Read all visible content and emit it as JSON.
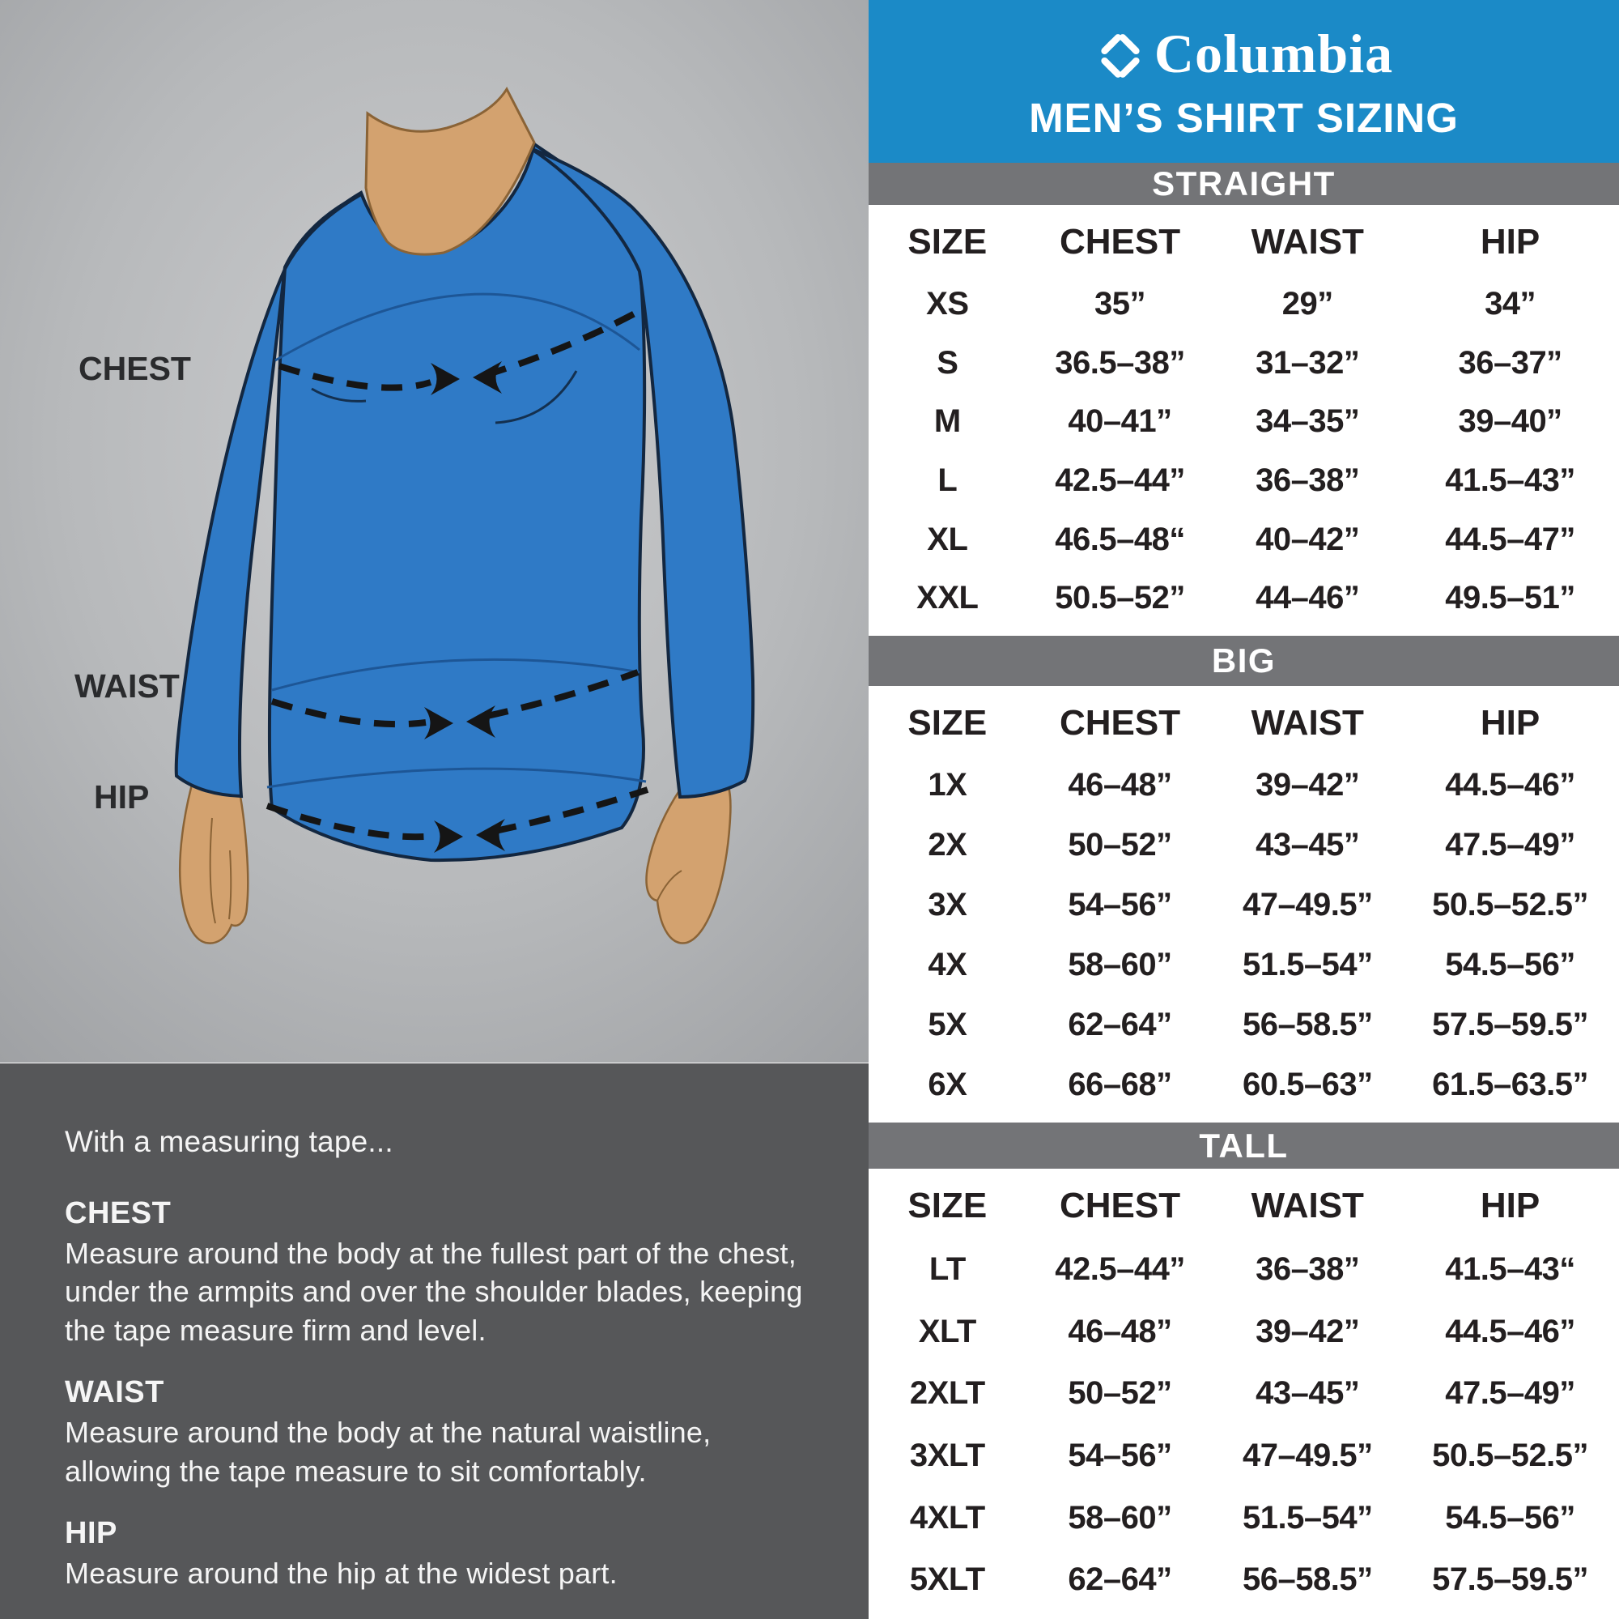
{
  "brand": {
    "icon": "columbia-diamond-logo",
    "name": "Columbia",
    "title": "MEN’S SHIRT SIZING"
  },
  "colors": {
    "header_blue": "#1b8ac7",
    "bar_gray": "#737477",
    "panel_dark": "#565759",
    "shirt_blue": "#2f7ac6",
    "illustration_bg_light": "#cccdcf",
    "illustration_bg_dark": "#9ea0a3",
    "table_text": "#231f20"
  },
  "figure": {
    "labels": [
      {
        "text": "CHEST"
      },
      {
        "text": "WAIST"
      },
      {
        "text": "HIP"
      }
    ]
  },
  "instructions": {
    "intro": "With a measuring tape...",
    "sections": [
      {
        "heading": "CHEST",
        "body": "Measure around the body at the fullest part of the chest, under the armpits and over the shoulder blades, keeping the tape measure firm and level."
      },
      {
        "heading": "WAIST",
        "body": "Measure around the body at the natural waistline, allowing the tape measure to sit comfortably."
      },
      {
        "heading": "HIP",
        "body": "Measure around the hip at the widest part."
      }
    ]
  },
  "tables": [
    {
      "section": "STRAIGHT",
      "columns": [
        "SIZE",
        "CHEST",
        "WAIST",
        "HIP"
      ],
      "rows": [
        [
          "XS",
          "35”",
          "29”",
          "34”"
        ],
        [
          "S",
          "36.5–38”",
          "31–32”",
          "36–37”"
        ],
        [
          "M",
          "40–41”",
          "34–35”",
          "39–40”"
        ],
        [
          "L",
          "42.5–44”",
          "36–38”",
          "41.5–43”"
        ],
        [
          "XL",
          "46.5–48“",
          "40–42”",
          "44.5–47”"
        ],
        [
          "XXL",
          "50.5–52”",
          "44–46”",
          "49.5–51”"
        ]
      ]
    },
    {
      "section": "BIG",
      "columns": [
        "SIZE",
        "CHEST",
        "WAIST",
        "HIP"
      ],
      "rows": [
        [
          "1X",
          "46–48”",
          "39–42”",
          "44.5–46”"
        ],
        [
          "2X",
          "50–52”",
          "43–45”",
          "47.5–49”"
        ],
        [
          "3X",
          "54–56”",
          "47–49.5”",
          "50.5–52.5”"
        ],
        [
          "4X",
          "58–60”",
          "51.5–54”",
          "54.5–56”"
        ],
        [
          "5X",
          "62–64”",
          "56–58.5”",
          "57.5–59.5”"
        ],
        [
          "6X",
          "66–68”",
          "60.5–63”",
          "61.5–63.5”"
        ]
      ]
    },
    {
      "section": "TALL",
      "columns": [
        "SIZE",
        "CHEST",
        "WAIST",
        "HIP"
      ],
      "rows": [
        [
          "LT",
          "42.5–44”",
          "36–38”",
          "41.5–43“"
        ],
        [
          "XLT",
          "46–48”",
          "39–42”",
          "44.5–46”"
        ],
        [
          "2XLT",
          "50–52”",
          "43–45”",
          "47.5–49”"
        ],
        [
          "3XLT",
          "54–56”",
          "47–49.5”",
          "50.5–52.5”"
        ],
        [
          "4XLT",
          "58–60”",
          "51.5–54”",
          "54.5–56”"
        ],
        [
          "5XLT",
          "62–64”",
          "56–58.5”",
          "57.5–59.5”"
        ]
      ]
    }
  ]
}
